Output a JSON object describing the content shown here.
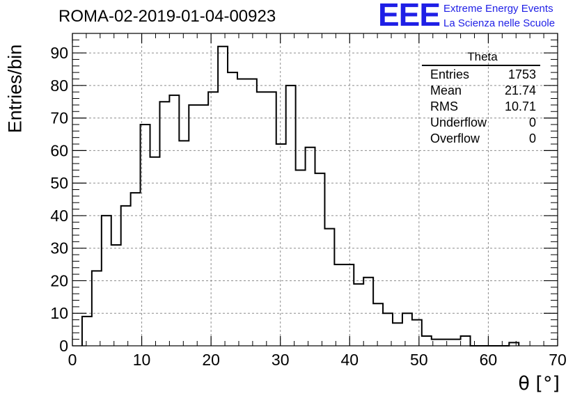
{
  "title": "ROMA-02-2019-01-04-00923",
  "logo": {
    "mark": "EEE",
    "line1": "Extreme Energy Events",
    "line2": "La Scienza nelle Scuole"
  },
  "stats": {
    "title": "Theta",
    "rows": [
      {
        "label": "Entries",
        "value": "1753"
      },
      {
        "label": "Mean",
        "value": "21.74"
      },
      {
        "label": "RMS",
        "value": "10.71"
      },
      {
        "label": "Underflow",
        "value": "0"
      },
      {
        "label": "Overflow",
        "value": "0"
      }
    ]
  },
  "colors": {
    "line": "#000000",
    "grid": "#8c8c8c",
    "logo": "#1f1fe6"
  },
  "chart_data": {
    "type": "bar",
    "style": "step-histogram",
    "title": "ROMA-02-2019-01-04-00923",
    "xlabel": "θ [°]",
    "ylabel": "Entries/bin",
    "xlim": [
      0,
      70
    ],
    "ylim": [
      0,
      96
    ],
    "grid": true,
    "legend": "stats box top-right",
    "bin_width": 1.4,
    "bin_start": 1.4,
    "values": [
      9,
      23,
      40,
      31,
      43,
      47,
      68,
      58,
      75,
      77,
      63,
      74,
      74,
      78,
      92,
      84,
      82,
      82,
      78,
      78,
      62,
      80,
      54,
      61,
      53,
      36,
      25,
      25,
      19,
      21,
      13,
      10,
      7,
      10,
      8,
      3,
      2,
      2,
      2,
      3,
      0,
      0,
      0,
      0,
      1
    ],
    "xticks": [
      "0",
      "10",
      "20",
      "30",
      "40",
      "50",
      "60",
      "70"
    ],
    "yticks": [
      "0",
      "10",
      "20",
      "30",
      "40",
      "50",
      "60",
      "70",
      "80",
      "90"
    ]
  }
}
